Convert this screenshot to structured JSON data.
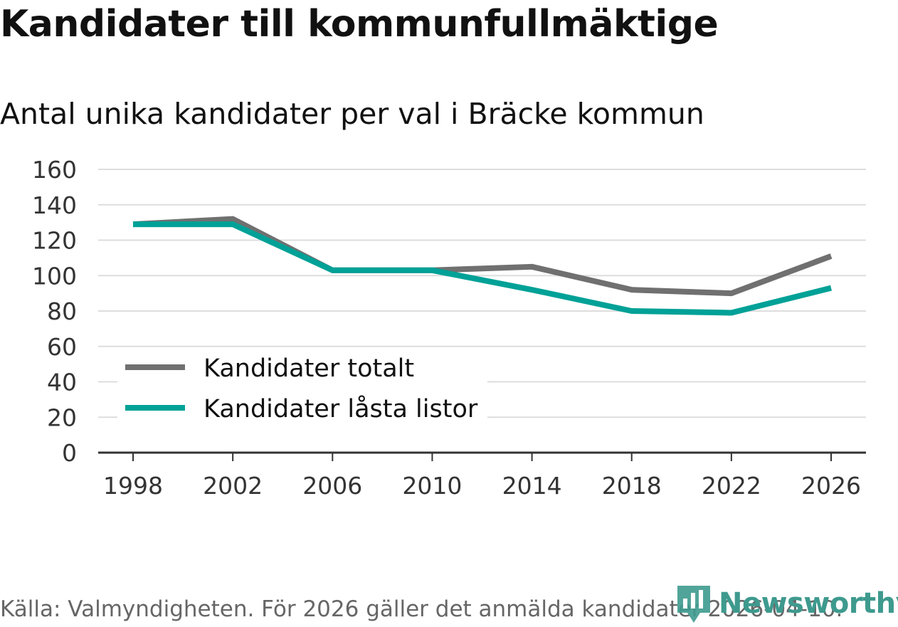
{
  "header": {
    "title": "Kandidater till kommunfullmäktige",
    "subtitle": "Antal unika kandidater per val i Bräcke kommun"
  },
  "footer": {
    "source": "Källa: Valmyndigheten. För 2026 gäller det anmälda kandidater 2026-04-10.",
    "brand": "Newsworthy"
  },
  "colors": {
    "total": "#707070",
    "locked": "#00a197",
    "brand": "#3e9a8e"
  },
  "chart_data": {
    "type": "line",
    "title": "Kandidater till kommunfullmäktige",
    "subtitle": "Antal unika kandidater per val i Bräcke kommun",
    "xlabel": "",
    "ylabel": "",
    "x": [
      "1998",
      "2002",
      "2006",
      "2010",
      "2014",
      "2018",
      "2022",
      "2026"
    ],
    "ylim": [
      0,
      160
    ],
    "yticks": [
      0,
      20,
      40,
      60,
      80,
      100,
      120,
      140,
      160
    ],
    "grid": true,
    "legend_position": "bottom-left",
    "series": [
      {
        "name": "Kandidater totalt",
        "color": "#707070",
        "values": [
          129,
          132,
          103,
          103,
          105,
          92,
          90,
          111
        ]
      },
      {
        "name": "Kandidater låsta listor",
        "color": "#00a197",
        "values": [
          129,
          129,
          103,
          103,
          92,
          80,
          79,
          93
        ]
      }
    ]
  }
}
